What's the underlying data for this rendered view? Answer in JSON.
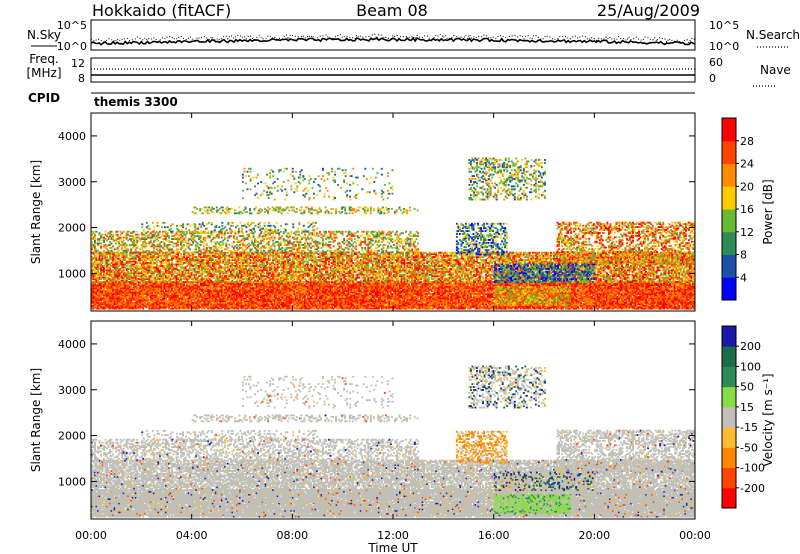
{
  "header": {
    "left": "Hokkaido (fitACF)",
    "center": "Beam 08",
    "right": "25/Aug/2009"
  },
  "noise_panel": {
    "left_label": "N.Sky",
    "left_ticks": [
      "10^5",
      "10^0"
    ],
    "right_ticks": [
      "10^5",
      "10^0"
    ],
    "right_label": "N.Search"
  },
  "freq_panel": {
    "label_line1": "Freq.",
    "label_line2": "[MHz]",
    "left_ticks": [
      "12",
      "8"
    ],
    "right_ticks": [
      "60",
      "0"
    ],
    "right_label": "Nave"
  },
  "cpid_panel": {
    "label": "CPID",
    "value": "themis 3300"
  },
  "power_panel": {
    "ylabel": "Slant Range [km]",
    "yticks": [
      "1000",
      "2000",
      "3000",
      "4000"
    ],
    "colorbar_label": "Power [dB]",
    "colorbar_ticks": [
      "4",
      "8",
      "12",
      "16",
      "20",
      "24",
      "28"
    ],
    "colors": [
      "#0000ff",
      "#1c4fa8",
      "#2e8b57",
      "#66bb33",
      "#ffcc00",
      "#ff8c00",
      "#ff4400",
      "#ff0000"
    ]
  },
  "velocity_panel": {
    "ylabel": "Slant Range [km]",
    "yticks": [
      "1000",
      "2000",
      "3000",
      "4000"
    ],
    "colorbar_label": "Velocity [m s⁻¹]",
    "colorbar_ticks": [
      "200",
      "100",
      "50",
      "15",
      "-15",
      "-50",
      "-100",
      "-200"
    ],
    "colors": [
      "#1a1aa8",
      "#1c6e4a",
      "#2e8b57",
      "#88dd44",
      "#c0c0b8",
      "#ffbb33",
      "#ff8800",
      "#ff4400",
      "#ff0000"
    ]
  },
  "xaxis": {
    "ticks": [
      "00:00",
      "04:00",
      "08:00",
      "12:00",
      "16:00",
      "20:00",
      "00:00"
    ],
    "label": "Time UT"
  },
  "chart_data": {
    "type": "heatmap",
    "title": "Hokkaido (fitACF)  Beam 08  25/Aug/2009",
    "xlabel": "Time UT",
    "ylabel": "Slant Range [km]",
    "xlim": [
      0,
      24
    ],
    "ylim": [
      180,
      4500
    ],
    "grid": false,
    "panels": [
      {
        "name": "Power",
        "units": "dB",
        "range": [
          0,
          30
        ]
      },
      {
        "name": "Velocity",
        "units": "m s-1",
        "range": [
          -200,
          200
        ]
      }
    ],
    "echo_regions": [
      {
        "t": [
          0,
          24
        ],
        "r": [
          200,
          800
        ],
        "power": "high (24-30 dB)",
        "velocity": "near zero (ground scatter)"
      },
      {
        "t": [
          0,
          24
        ],
        "r": [
          800,
          1450
        ],
        "power": "moderate-high (16-28 dB)",
        "velocity": "near zero"
      },
      {
        "t": [
          0,
          13
        ],
        "r": [
          1450,
          1900
        ],
        "power": "moderate (12-24 dB)",
        "velocity": "near zero"
      },
      {
        "t": [
          4,
          13
        ],
        "r": [
          2300,
          2450
        ],
        "power": "moderate (12-20 dB)",
        "velocity": "near zero"
      },
      {
        "t": [
          15,
          18
        ],
        "r": [
          2600,
          3500
        ],
        "power": "moderate (8-20 dB)",
        "velocity": "near zero, some positive"
      },
      {
        "t": [
          14.5,
          16.5
        ],
        "r": [
          1400,
          2100
        ],
        "power": "low-moderate (4-16 dB)",
        "velocity": "negative (-50 to -100)"
      },
      {
        "t": [
          16,
          19
        ],
        "r": [
          300,
          700
        ],
        "power": "moderate (12-24 dB)",
        "velocity": "positive (15-50)"
      },
      {
        "t": [
          18.5,
          24
        ],
        "r": [
          1200,
          2100
        ],
        "power": "moderate-high (12-28 dB)",
        "velocity": "near zero"
      }
    ]
  }
}
